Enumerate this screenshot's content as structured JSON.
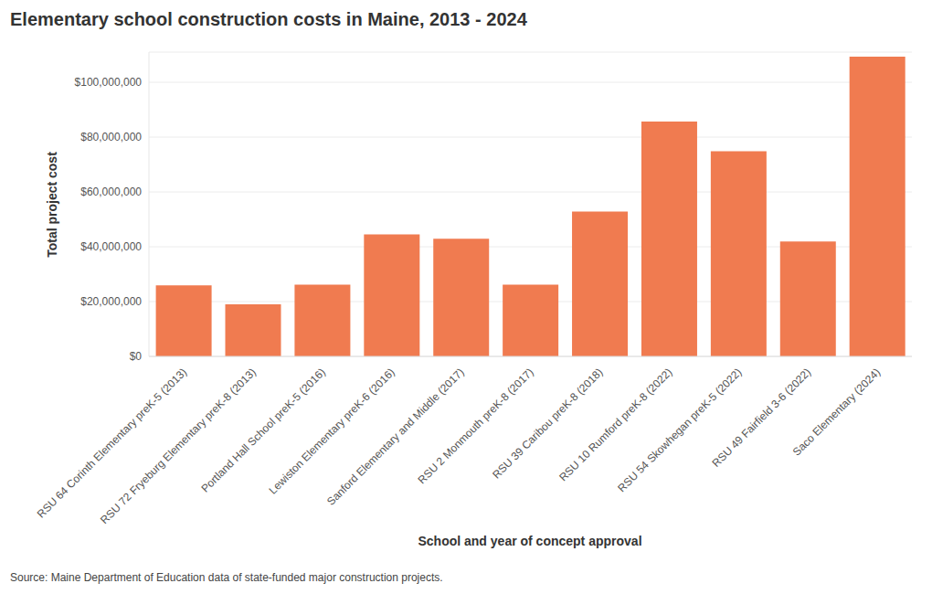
{
  "chart_data": {
    "type": "bar",
    "title": "Elementary school construction costs in Maine, 2013 - 2024",
    "x_label": "School and year of concept approval",
    "y_label": "Total project cost",
    "source": "Source: Maine Department of Education data of state-funded major construction projects.",
    "categories": [
      "RSU 64 Corinth Elementary preK-5 (2013)",
      "RSU 72 Fryeburg Elementary preK-8 (2013)",
      "Portland Hall School preK-5 (2016)",
      "Lewiston Elementary preK-6 (2016)",
      "Sanford Elementary and Middle (2017)",
      "RSU 2 Monmouth preK-8 (2017)",
      "RSU 39 Caribou preK-8 (2018)",
      "RSU 10 Rumford preK-8 (2022)",
      "RSU 54 Skowhegan preK-5 (2022)",
      "RSU 49 Fairfield 3-6 (2022)",
      "Saco Elementary (2024)"
    ],
    "values": [
      25900000,
      19000000,
      26200000,
      44500000,
      42900000,
      26200000,
      52800000,
      85700000,
      74800000,
      41900000,
      109300000
    ],
    "color": "#f07b50",
    "ylim": [
      0,
      111000000
    ],
    "yticks": [
      {
        "value": 0,
        "label": "$0"
      },
      {
        "value": 20000000,
        "label": "$20,000,000"
      },
      {
        "value": 40000000,
        "label": "$40,000,000"
      },
      {
        "value": 60000000,
        "label": "$60,000,000"
      },
      {
        "value": 80000000,
        "label": "$80,000,000"
      },
      {
        "value": 100000000,
        "label": "$100,000,000"
      }
    ],
    "grid": true
  }
}
